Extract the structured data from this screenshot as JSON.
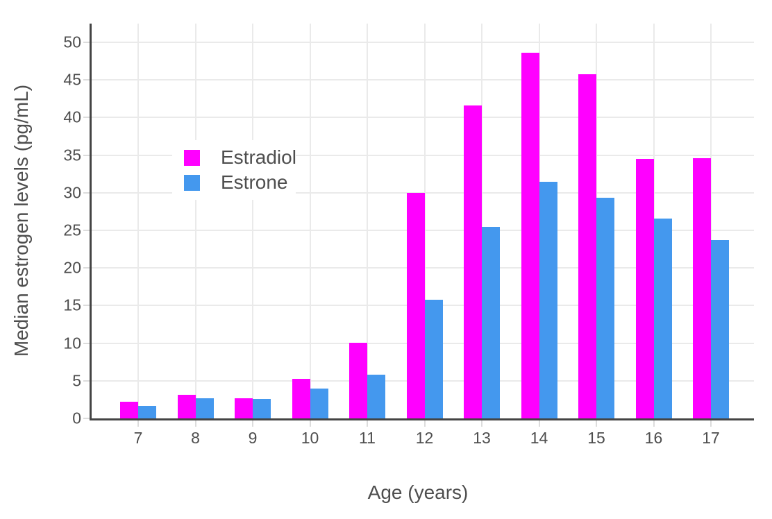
{
  "page": {
    "background": "#FFFFFF"
  },
  "chart_data": {
    "type": "bar",
    "title": "",
    "xlabel": "Age (years)",
    "ylabel": "Median estrogen levels (pg/mL)",
    "categories": [
      "7",
      "8",
      "9",
      "10",
      "11",
      "12",
      "13",
      "14",
      "15",
      "16",
      "17"
    ],
    "series": [
      {
        "name": "Estradiol",
        "color": "#FF00FF",
        "values": [
          2.2,
          3.1,
          2.7,
          5.3,
          10.1,
          30.0,
          41.6,
          48.6,
          45.8,
          34.5,
          34.6
        ]
      },
      {
        "name": "Estrone",
        "color": "#4498EE",
        "values": [
          1.7,
          2.7,
          2.6,
          4.0,
          5.8,
          15.8,
          25.5,
          31.5,
          29.3,
          26.6,
          23.7
        ]
      }
    ],
    "y_ticks": [
      0,
      5,
      10,
      15,
      20,
      25,
      30,
      35,
      40,
      45,
      50
    ],
    "ylim": [
      0,
      52.5
    ],
    "grid": true,
    "legend": {
      "position": "inside-top-left",
      "entries": [
        "Estradiol",
        "Estrone"
      ]
    }
  },
  "style": {
    "grid_color": "#EAEAEA",
    "tick_mark_color": "#DCDCDC",
    "axis_line_color": "#444444",
    "text_color": "#4E4E4E"
  }
}
